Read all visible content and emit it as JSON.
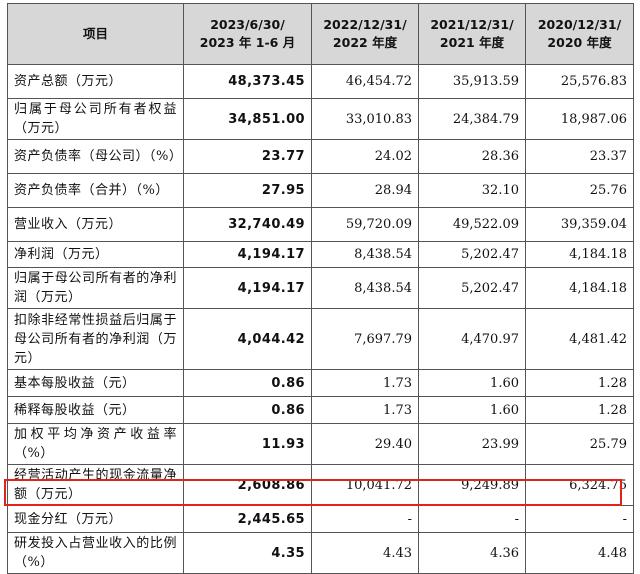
{
  "headers": [
    "项目",
    "2023/6/30/\n2023 年 1-6 月",
    "2022/12/31/\n2022 年度",
    "2021/12/31/\n2021 年度",
    "2020/12/31/\n2020 年度"
  ],
  "rows": [
    {
      "label": "资产总额（万元）",
      "values": [
        "48,373.45",
        "46,454.72",
        "35,913.59",
        "25,576.83"
      ]
    },
    {
      "label": "归属于母公司所有者权益（万元）",
      "values": [
        "34,851.00",
        "33,010.83",
        "24,384.79",
        "18,987.06"
      ]
    },
    {
      "label": "资产负债率（母公司）（%）",
      "values": [
        "23.77",
        "24.02",
        "28.36",
        "23.37"
      ]
    },
    {
      "label": "资产负债率（合并）（%）",
      "values": [
        "27.95",
        "28.94",
        "32.10",
        "25.76"
      ]
    },
    {
      "label": "营业收入（万元）",
      "values": [
        "32,740.49",
        "59,720.09",
        "49,522.09",
        "39,359.04"
      ]
    },
    {
      "label": "净利润（万元）",
      "values": [
        "4,194.17",
        "8,438.54",
        "5,202.47",
        "4,184.18"
      ]
    },
    {
      "label": "归属于母公司所有者的净利润（万元）",
      "values": [
        "4,194.17",
        "8,438.54",
        "5,202.47",
        "4,184.18"
      ]
    },
    {
      "label": "扣除非经常性损益后归属于母公司所有者的净利润（万元）",
      "values": [
        "4,044.42",
        "7,697.79",
        "4,470.97",
        "4,481.42"
      ]
    },
    {
      "label": "基本每股收益（元）",
      "values": [
        "0.86",
        "1.73",
        "1.60",
        "1.28"
      ]
    },
    {
      "label": "稀释每股收益（元）",
      "values": [
        "0.86",
        "1.73",
        "1.60",
        "1.28"
      ]
    },
    {
      "label": "加权平均净资产收益率（%）",
      "values": [
        "11.93",
        "29.40",
        "23.99",
        "25.79"
      ]
    },
    {
      "label": "经营活动产生的现金流量净额（万元）",
      "values": [
        "2,608.86",
        "10,041.72",
        "9,249.89",
        "6,324.75"
      ]
    },
    {
      "label": "现金分红（万元）",
      "values": [
        "2,445.65",
        "-",
        "-",
        "-"
      ]
    },
    {
      "label": "研发投入占营业收入的比例（%）",
      "values": [
        "4.35",
        "4.43",
        "4.36",
        "4.48"
      ]
    }
  ],
  "colors": {
    "header_bg": "#d7d7d7",
    "highlight_border": "#e3221b"
  }
}
